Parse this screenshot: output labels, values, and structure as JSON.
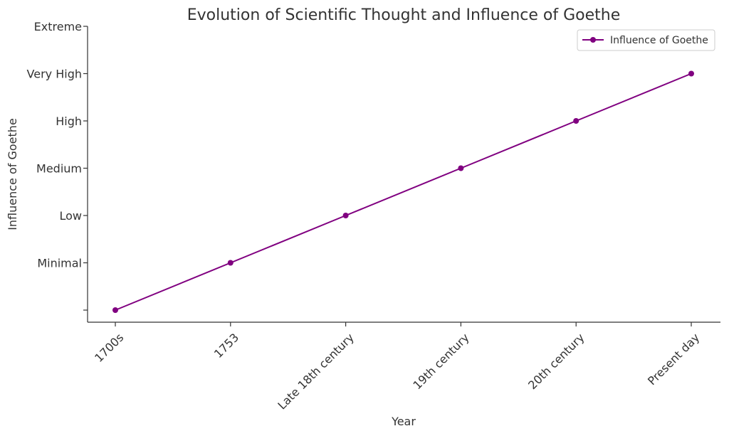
{
  "chart_data": {
    "type": "line",
    "title": "Evolution of Scientific Thought and Influence of Goethe",
    "xlabel": "Year",
    "ylabel": "Influence of Goethe",
    "categories": [
      "1700s",
      "1753",
      "Late 18th century",
      "19th century",
      "20th century",
      "Present day"
    ],
    "y_ticks": [
      0,
      1,
      2,
      3,
      4,
      5,
      6
    ],
    "y_tick_labels": [
      "",
      "Minimal",
      "Low",
      "Medium",
      "High",
      "Very High",
      "Extreme"
    ],
    "ylim": [
      -0.25,
      6
    ],
    "series": [
      {
        "name": "Influence of Goethe",
        "values": [
          0,
          1,
          2,
          3,
          4,
          5
        ]
      }
    ],
    "legend": "top-right",
    "grid": false,
    "color": "#800080"
  }
}
